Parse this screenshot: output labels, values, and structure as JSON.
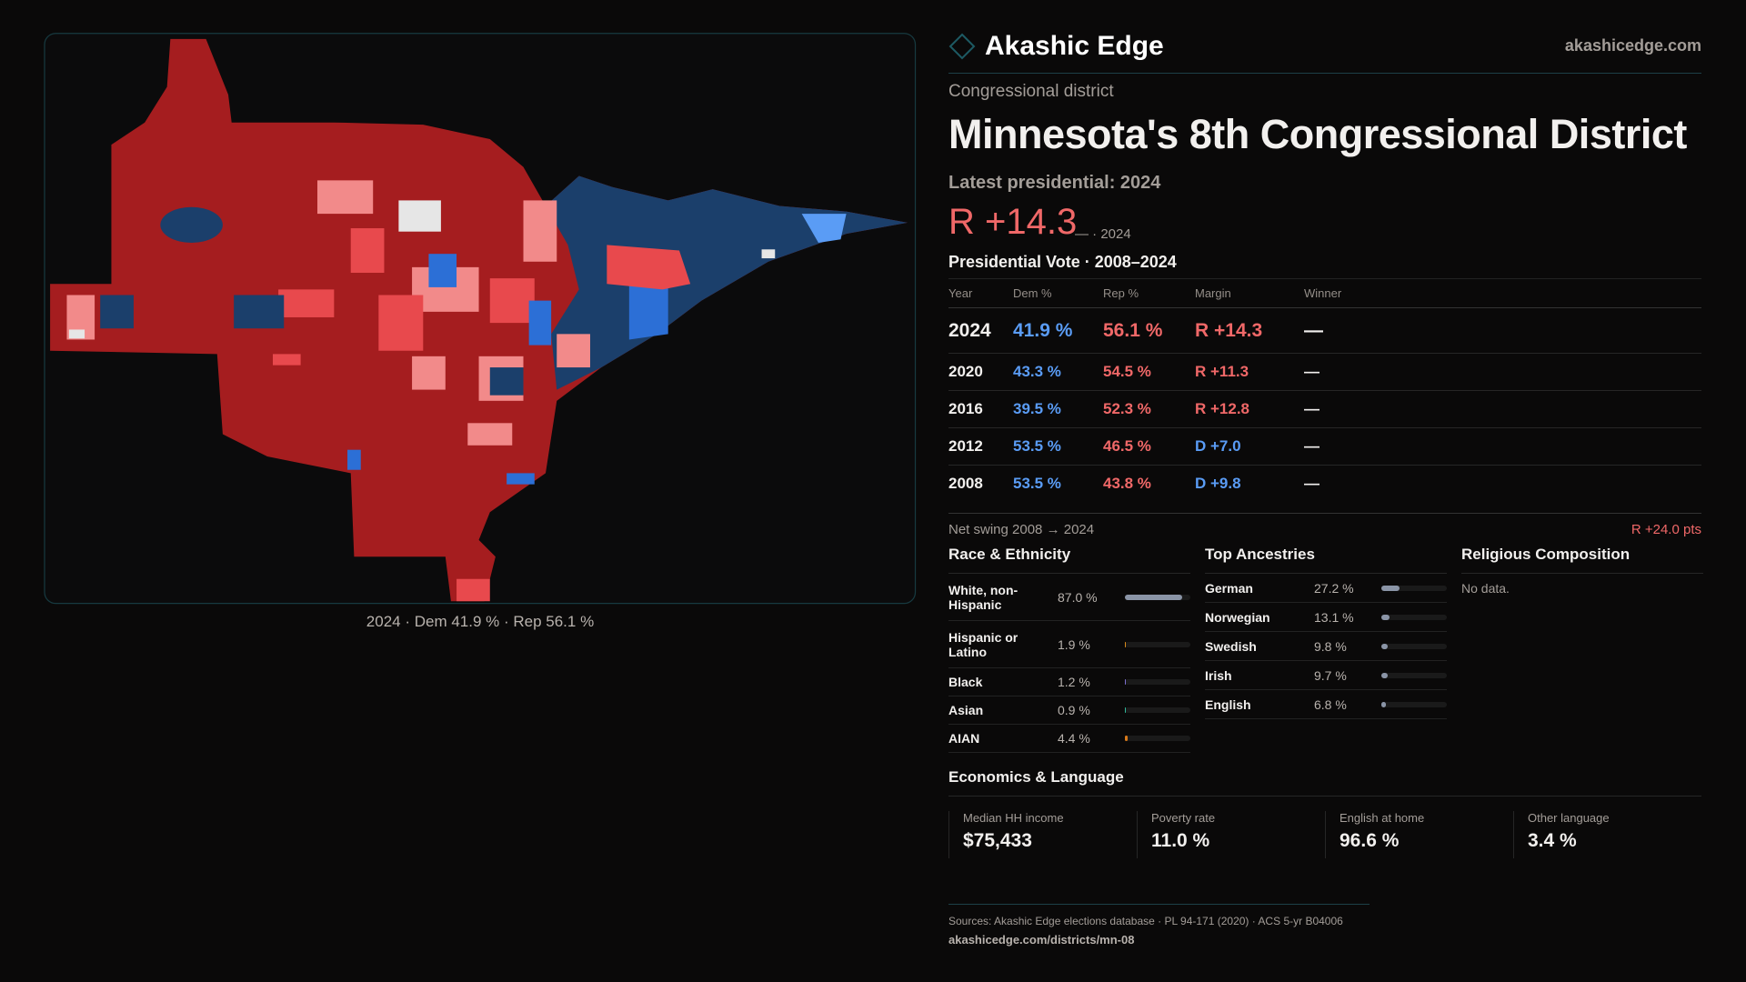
{
  "brand": {
    "name": "Akashic Edge",
    "site": "akashicedge.com"
  },
  "header": {
    "kicker": "Congressional district",
    "title": "Minnesota's 8th Congressional District",
    "latest": "Latest presidential: 2024",
    "margin": "R +14.3",
    "margin_sub": "— · 2024"
  },
  "map": {
    "caption": "2024 · Dem 41.9 % · Rep 56.1 %",
    "colors": {
      "safe_r": "#a51d1f",
      "lean_r": "#e8494d",
      "tilt_r": "#f28a8a",
      "safe_d": "#1b3f6b",
      "lean_d": "#2c6fd6",
      "tilt_d": "#5a9cf5"
    }
  },
  "votes": {
    "title": "Presidential Vote · 2008–2024",
    "headers": [
      "Year",
      "Dem %",
      "Rep %",
      "Margin",
      "Winner"
    ],
    "rows": [
      {
        "year": "2024",
        "dem": "41.9 %",
        "rep": "56.1 %",
        "margin": "R +14.3",
        "party": "R",
        "winner": "—"
      },
      {
        "year": "2020",
        "dem": "43.3 %",
        "rep": "54.5 %",
        "margin": "R +11.3",
        "party": "R",
        "winner": "—"
      },
      {
        "year": "2016",
        "dem": "39.5 %",
        "rep": "52.3 %",
        "margin": "R +12.8",
        "party": "R",
        "winner": "—"
      },
      {
        "year": "2012",
        "dem": "53.5 %",
        "rep": "46.5 %",
        "margin": "D +7.0",
        "party": "D",
        "winner": "—"
      },
      {
        "year": "2008",
        "dem": "53.5 %",
        "rep": "43.8 %",
        "margin": "D +9.8",
        "party": "D",
        "winner": "—"
      }
    ]
  },
  "swing": {
    "label": "Net swing 2008 → 2024",
    "value": "R +24.0 pts"
  },
  "race": {
    "title": "Race & Ethnicity",
    "items": [
      {
        "label": "White, non-Hispanic",
        "value": "87.0 %",
        "pct": 87.0,
        "color": "#8a94a6"
      },
      {
        "label": "Hispanic or Latino",
        "value": "1.9 %",
        "pct": 1.9,
        "color": "#d98a1a"
      },
      {
        "label": "Black",
        "value": "1.2 %",
        "pct": 1.2,
        "color": "#7b6fd0"
      },
      {
        "label": "Asian",
        "value": "0.9 %",
        "pct": 0.9,
        "color": "#2fb89a"
      },
      {
        "label": "AIAN",
        "value": "4.4 %",
        "pct": 4.4,
        "color": "#d97a1a"
      }
    ]
  },
  "ancestry": {
    "title": "Top Ancestries",
    "items": [
      {
        "label": "German",
        "value": "27.2 %",
        "pct": 27.2,
        "color": "#8a94a6"
      },
      {
        "label": "Norwegian",
        "value": "13.1 %",
        "pct": 13.1,
        "color": "#8a94a6"
      },
      {
        "label": "Swedish",
        "value": "9.8 %",
        "pct": 9.8,
        "color": "#8a94a6"
      },
      {
        "label": "Irish",
        "value": "9.7 %",
        "pct": 9.7,
        "color": "#8a94a6"
      },
      {
        "label": "English",
        "value": "6.8 %",
        "pct": 6.8,
        "color": "#8a94a6"
      }
    ]
  },
  "religion": {
    "title": "Religious Composition",
    "empty": "No data."
  },
  "econ": {
    "title": "Economics & Language",
    "stats": [
      {
        "label": "Median HH income",
        "value": "$75,433"
      },
      {
        "label": "Poverty rate",
        "value": "11.0 %"
      },
      {
        "label": "English at home",
        "value": "96.6 %"
      },
      {
        "label": "Other language",
        "value": "3.4 %"
      }
    ]
  },
  "footer": {
    "sources": "Sources: Akashic Edge elections database · PL 94-171 (2020) · ACS 5-yr B04006",
    "url": "akashicedge.com/districts/mn-08"
  }
}
